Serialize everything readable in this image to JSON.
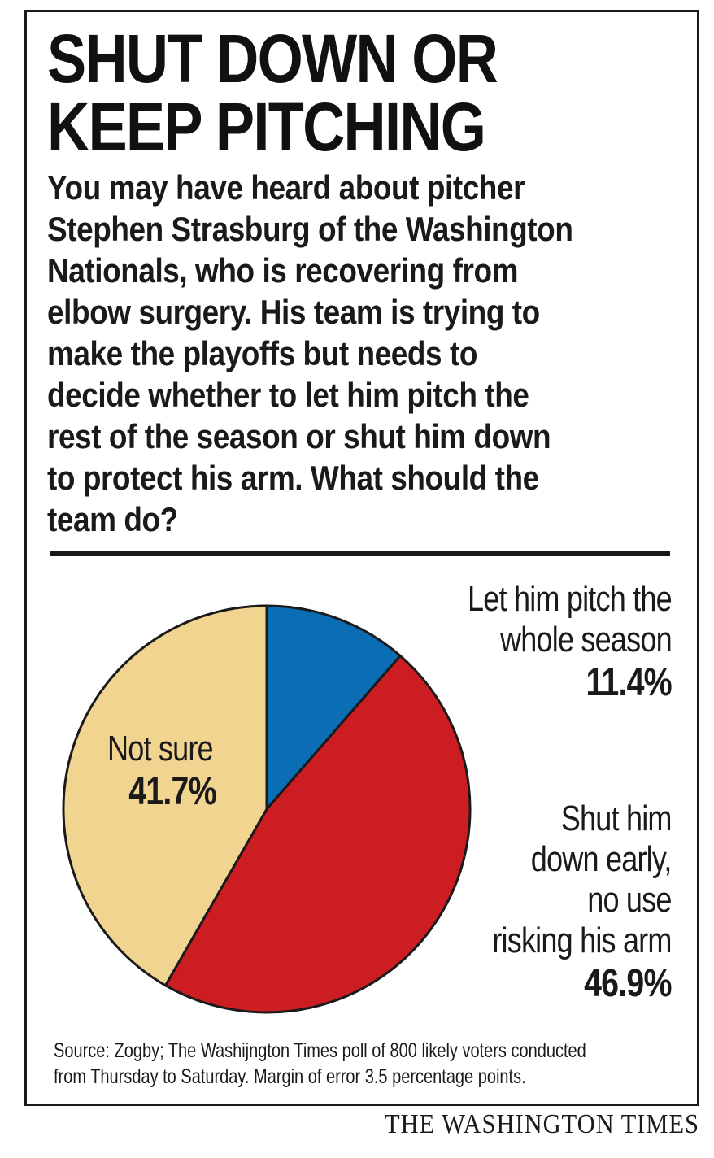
{
  "header": {
    "title_lines": [
      "SHUT DOWN OR",
      "KEEP PITCHING"
    ],
    "intro_lines": [
      "You may have heard about pitcher",
      "Stephen Strasburg of the Washington",
      "Nationals, who is recovering from",
      "elbow surgery. His team is trying to",
      "make the playoffs but needs to",
      "decide whether to let him pitch the",
      "rest of the season or shut him down",
      "to protect his arm. What should the",
      "team do?"
    ]
  },
  "chart_data": {
    "type": "pie",
    "slices": [
      {
        "label_lines": [
          "Let him pitch the",
          "whole season"
        ],
        "value": 11.4,
        "value_label": "11.4%",
        "color": "#0b6db3"
      },
      {
        "label_lines": [
          "Shut him",
          "down early,",
          "no use",
          "risking his arm"
        ],
        "value": 46.9,
        "value_label": "46.9%",
        "color": "#cc1d22"
      },
      {
        "label_lines": [
          "Not sure"
        ],
        "value": 41.7,
        "value_label": "41.7%",
        "color": "#f2d491"
      }
    ],
    "start_angle_deg": 0,
    "direction": "clockwise"
  },
  "footer": {
    "source_lines": [
      "Source: Zogby; The Washijngton Times poll of 800 likely voters conducted",
      "from Thursday to Saturday. Margin of error 3.5 percentage points."
    ],
    "brand": "THE WASHINGTON TIMES"
  }
}
